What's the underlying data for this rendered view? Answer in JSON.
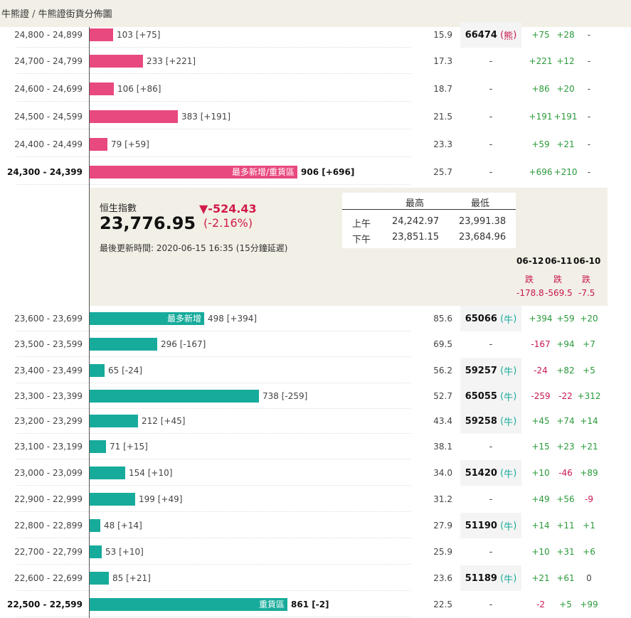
{
  "breadcrumb": {
    "parent": "牛熊證",
    "separator": " / ",
    "current": "牛熊證街貨分佈圖"
  },
  "colors": {
    "bear": "#e8497f",
    "bull": "#17ab9b",
    "positive": "#2a9a3a",
    "negative": "#c8184f",
    "panel": "#f2efe6"
  },
  "bear_rows": [
    {
      "range": "24,800 - 24,899",
      "count": "103 [+75]",
      "value": 103,
      "pct": "15.9",
      "code": "66474",
      "type": "熊",
      "d1": "+75",
      "d2": "+28",
      "d3": "-"
    },
    {
      "range": "24,700 - 24,799",
      "count": "233 [+221]",
      "value": 233,
      "pct": "17.3",
      "code": "-",
      "type": "",
      "d1": "+221",
      "d2": "+12",
      "d3": "-"
    },
    {
      "range": "24,600 - 24,699",
      "count": "106 [+86]",
      "value": 106,
      "pct": "18.7",
      "code": "-",
      "type": "",
      "d1": "+86",
      "d2": "+20",
      "d3": "-"
    },
    {
      "range": "24,500 - 24,599",
      "count": "383 [+191]",
      "value": 383,
      "pct": "21.5",
      "code": "-",
      "type": "",
      "d1": "+191",
      "d2": "+191",
      "d3": "-"
    },
    {
      "range": "24,400 - 24,499",
      "count": "79 [+59]",
      "value": 79,
      "pct": "23.3",
      "code": "-",
      "type": "",
      "d1": "+59",
      "d2": "+21",
      "d3": "-"
    },
    {
      "range": "24,300 - 24,399",
      "count": "906 [+696]",
      "value": 906,
      "pct": "25.7",
      "code": "-",
      "type": "",
      "d1": "+696",
      "d2": "+210",
      "d3": "-",
      "tag": "最多新增/重貨區",
      "bold": true
    }
  ],
  "index_panel": {
    "name": "恒生指數",
    "value": "23,776.95",
    "change": "▼-524.43",
    "change_pct": "(-2.16%)",
    "updated": "最後更新時間: 2020-06-15 16:35 (15分鐘延遲)",
    "table_headers": [
      "最高",
      "最低"
    ],
    "sessions": [
      {
        "label": "上午",
        "high": "24,242.97",
        "low": "23,991.38"
      },
      {
        "label": "下午",
        "high": "23,851.15",
        "low": "23,684.96"
      }
    ],
    "dates": [
      {
        "date": "06-12",
        "dir": "跌",
        "chg": "-178.8"
      },
      {
        "date": "06-11",
        "dir": "跌",
        "chg": "-569.5"
      },
      {
        "date": "06-10",
        "dir": "跌",
        "chg": "-7.5"
      }
    ]
  },
  "bull_rows": [
    {
      "range": "23,600 - 23,699",
      "count": "498 [+394]",
      "value": 498,
      "pct": "85.6",
      "code": "65066",
      "type": "牛",
      "d1": "+394",
      "d2": "+59",
      "d3": "+20",
      "tag": "最多新增"
    },
    {
      "range": "23,500 - 23,599",
      "count": "296 [-167]",
      "value": 296,
      "pct": "69.5",
      "code": "-",
      "type": "",
      "d1": "-167",
      "d2": "+94",
      "d3": "+7"
    },
    {
      "range": "23,400 - 23,499",
      "count": "65 [-24]",
      "value": 65,
      "pct": "56.2",
      "code": "59257",
      "type": "牛",
      "d1": "-24",
      "d2": "+82",
      "d3": "+5"
    },
    {
      "range": "23,300 - 23,399",
      "count": "738 [-259]",
      "value": 738,
      "pct": "52.7",
      "code": "65055",
      "type": "牛",
      "d1": "-259",
      "d2": "-22",
      "d3": "+312"
    },
    {
      "range": "23,200 - 23,299",
      "count": "212 [+45]",
      "value": 212,
      "pct": "43.4",
      "code": "59258",
      "type": "牛",
      "d1": "+45",
      "d2": "+74",
      "d3": "+14"
    },
    {
      "range": "23,100 - 23,199",
      "count": "71 [+15]",
      "value": 71,
      "pct": "38.1",
      "code": "-",
      "type": "",
      "d1": "+15",
      "d2": "+23",
      "d3": "+21"
    },
    {
      "range": "23,000 - 23,099",
      "count": "154 [+10]",
      "value": 154,
      "pct": "34.0",
      "code": "51420",
      "type": "牛",
      "d1": "+10",
      "d2": "-46",
      "d3": "+89"
    },
    {
      "range": "22,900 - 22,999",
      "count": "199 [+49]",
      "value": 199,
      "pct": "31.2",
      "code": "-",
      "type": "",
      "d1": "+49",
      "d2": "+56",
      "d3": "-9"
    },
    {
      "range": "22,800 - 22,899",
      "count": "48 [+14]",
      "value": 48,
      "pct": "27.9",
      "code": "51190",
      "type": "牛",
      "d1": "+14",
      "d2": "+11",
      "d3": "+1"
    },
    {
      "range": "22,700 - 22,799",
      "count": "53 [+10]",
      "value": 53,
      "pct": "25.9",
      "code": "-",
      "type": "",
      "d1": "+10",
      "d2": "+31",
      "d3": "+6"
    },
    {
      "range": "22,600 - 22,699",
      "count": "85 [+21]",
      "value": 85,
      "pct": "23.6",
      "code": "51189",
      "type": "牛",
      "d1": "+21",
      "d2": "+61",
      "d3": "0"
    },
    {
      "range": "22,500 - 22,599",
      "count": "861 [-2]",
      "value": 861,
      "pct": "22.5",
      "code": "-",
      "type": "",
      "d1": "-2",
      "d2": "+5",
      "d3": "+99",
      "tag": "重貨區",
      "bold": true
    }
  ]
}
